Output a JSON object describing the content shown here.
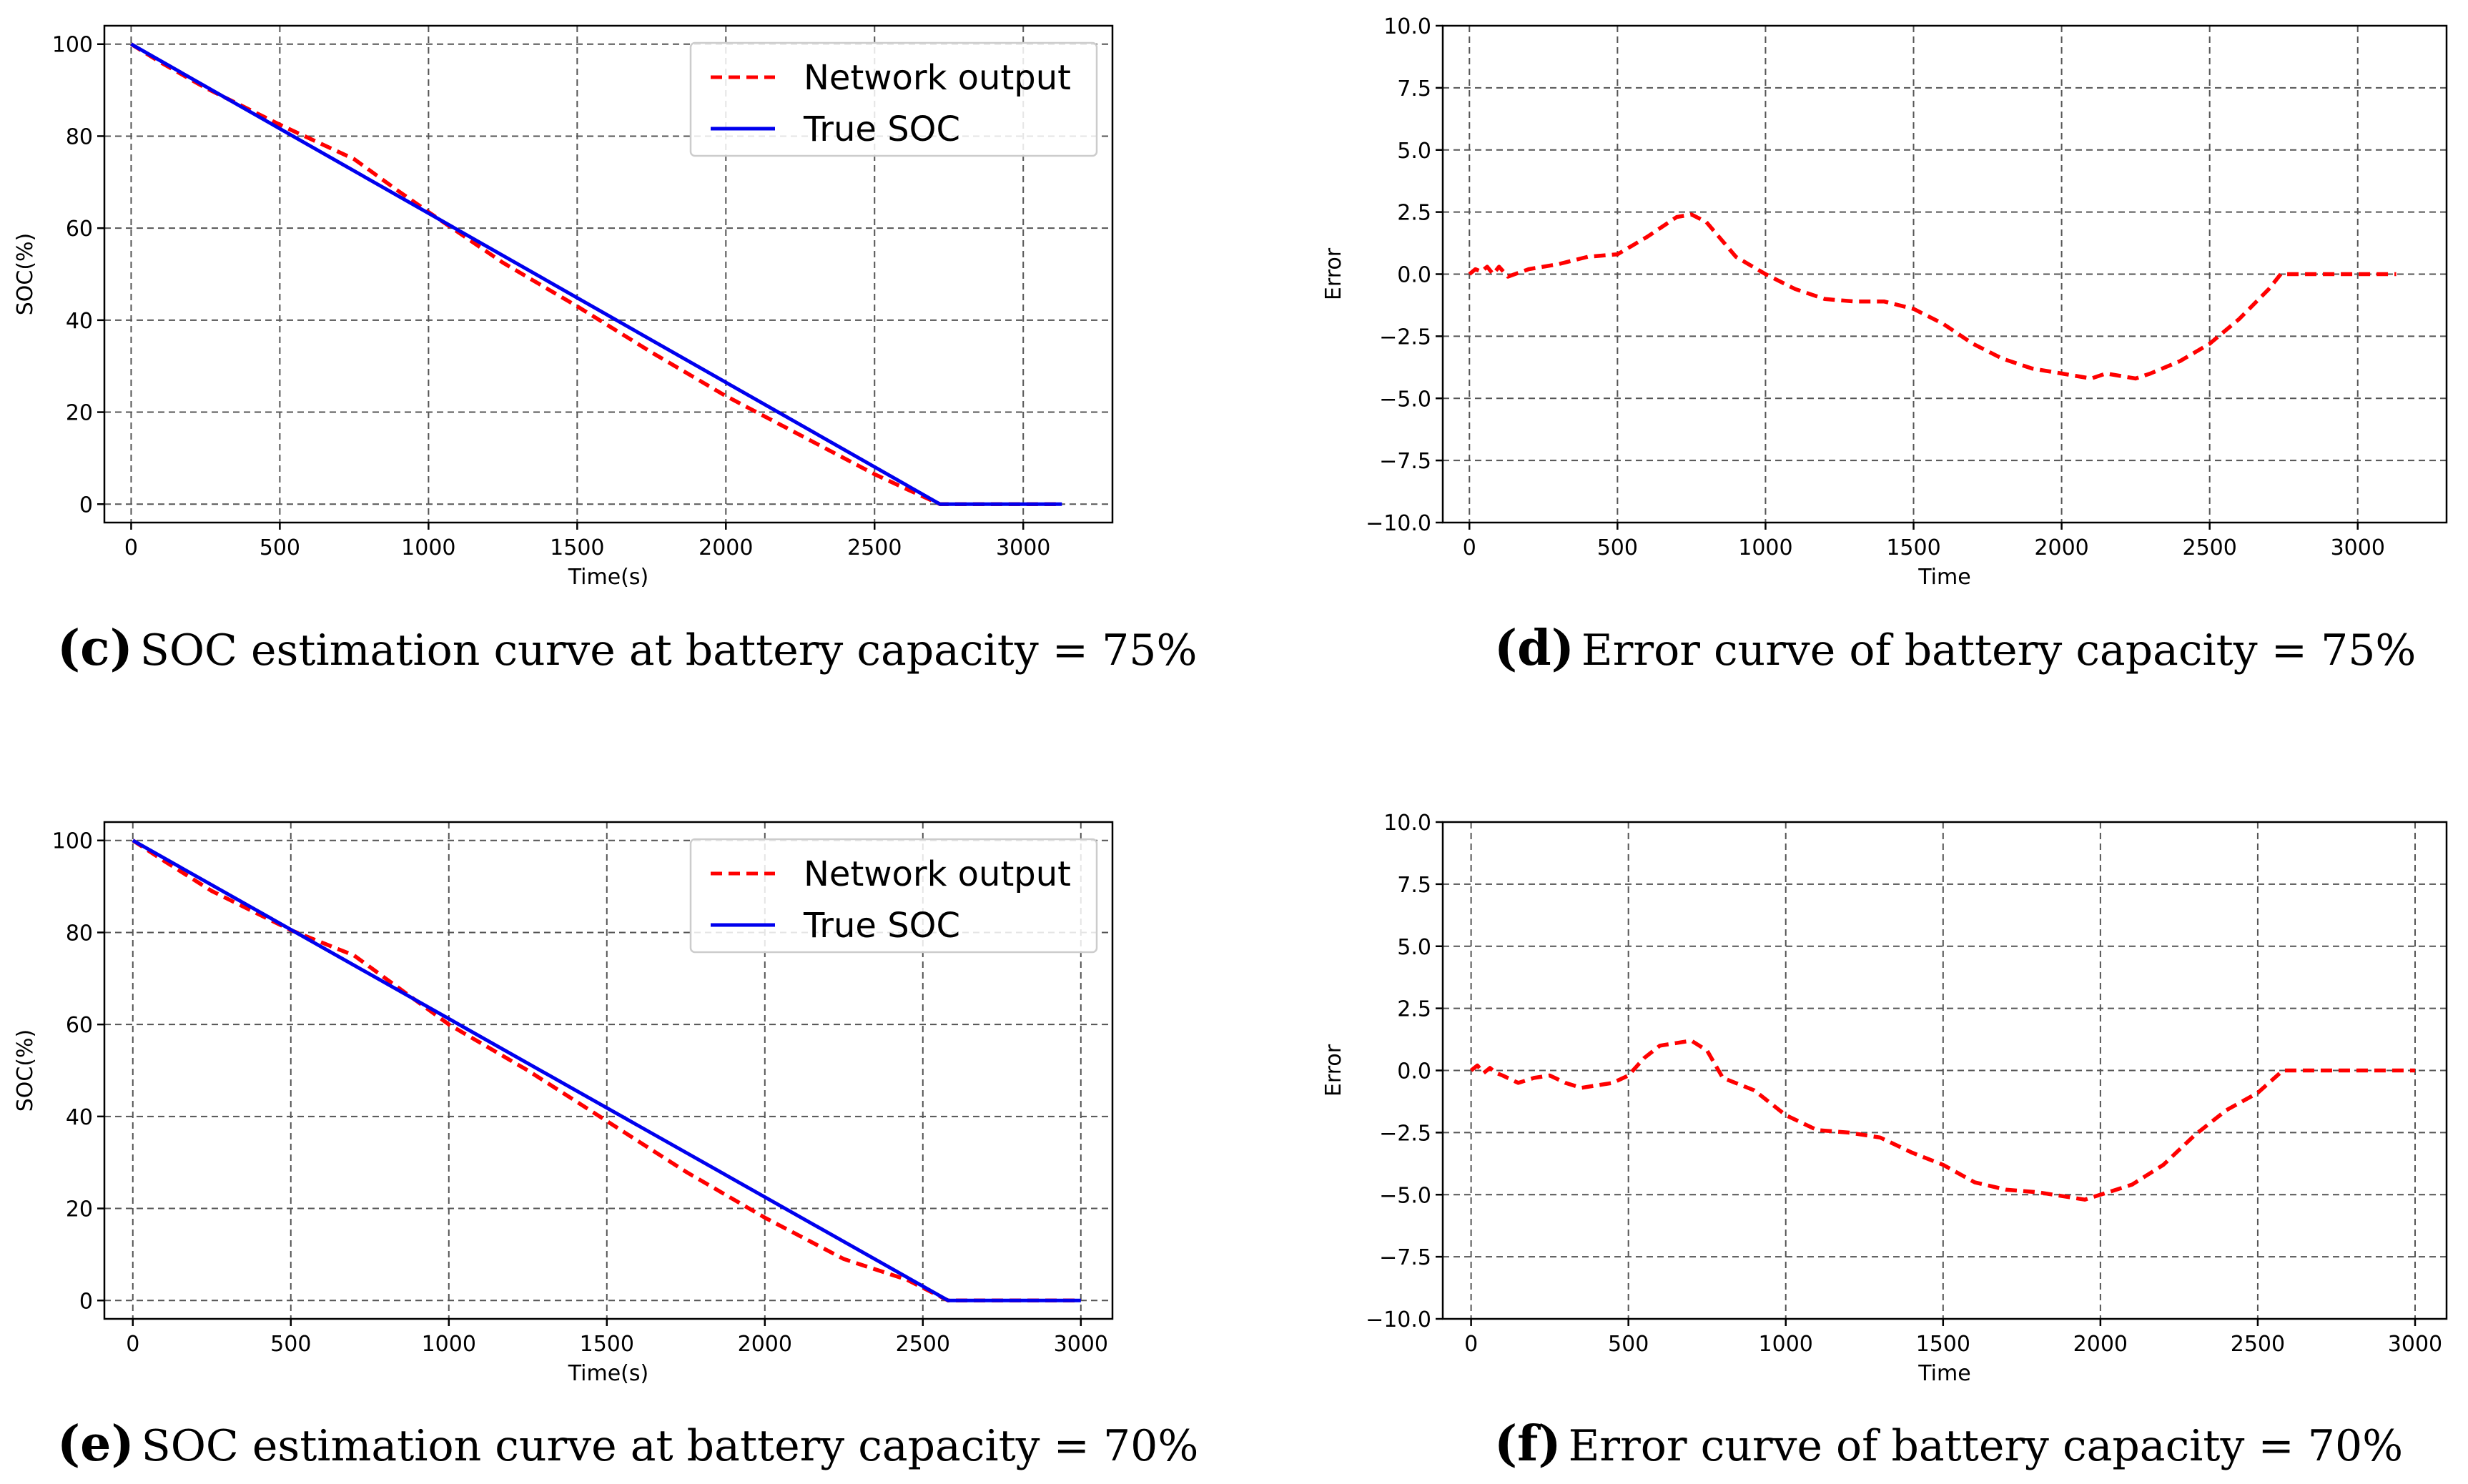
{
  "colors": {
    "network_output": "#ff0000",
    "true_soc": "#0000ee"
  },
  "chart_data": [
    {
      "id": "c",
      "type": "line",
      "letter": "(c)",
      "caption": "SOC estimation curve at battery capacity = 75%",
      "xlabel": "Time(s)",
      "ylabel": "SOC(%)",
      "xlim": [
        -90,
        3300
      ],
      "ylim": [
        -4,
        104
      ],
      "xticks": [
        0,
        500,
        1000,
        1500,
        2000,
        2500,
        3000
      ],
      "yticks": [
        0,
        20,
        40,
        60,
        80,
        100
      ],
      "xtick_labels": [
        "0",
        "500",
        "1000",
        "1500",
        "2000",
        "2500",
        "3000"
      ],
      "ytick_labels": [
        "0",
        "20",
        "40",
        "60",
        "80",
        "100"
      ],
      "legend": {
        "position": "top-right",
        "entries": [
          "Network output",
          "True SOC"
        ]
      },
      "series": [
        {
          "name": "Network output",
          "style": "dashed",
          "color": "#ff0000",
          "x": [
            0,
            100,
            250,
            500,
            750,
            900,
            1000,
            1250,
            1500,
            1750,
            2000,
            2250,
            2500,
            2600,
            2720,
            3000,
            3130
          ],
          "y": [
            100,
            96,
            90.5,
            82.5,
            75,
            68,
            63.5,
            52.5,
            43,
            33,
            23.5,
            15,
            6.5,
            3.5,
            0,
            0,
            0
          ]
        },
        {
          "name": "True SOC",
          "style": "solid",
          "color": "#0000ee",
          "x": [
            0,
            2720,
            3130
          ],
          "y": [
            100,
            0,
            0
          ]
        }
      ]
    },
    {
      "id": "d",
      "type": "line",
      "letter": "(d)",
      "caption": "Error curve of battery capacity = 75%",
      "xlabel": "Time",
      "ylabel": "Error",
      "xlim": [
        -90,
        3300
      ],
      "ylim": [
        -10,
        10
      ],
      "xticks": [
        0,
        500,
        1000,
        1500,
        2000,
        2500,
        3000
      ],
      "yticks": [
        -10,
        -7.5,
        -5,
        -2.5,
        0,
        2.5,
        5,
        7.5,
        10
      ],
      "xtick_labels": [
        "0",
        "500",
        "1000",
        "1500",
        "2000",
        "2500",
        "3000"
      ],
      "ytick_labels": [
        "−10.0",
        "−7.5",
        "−5.0",
        "−2.5",
        "0.0",
        "2.5",
        "5.0",
        "7.5",
        "10.0"
      ],
      "series": [
        {
          "name": "Error",
          "style": "dashed",
          "color": "#ff0000",
          "x": [
            0,
            20,
            40,
            60,
            80,
            100,
            130,
            200,
            300,
            400,
            500,
            600,
            700,
            750,
            800,
            900,
            1000,
            1100,
            1200,
            1300,
            1400,
            1500,
            1600,
            1700,
            1800,
            1900,
            2000,
            2050,
            2100,
            2150,
            2200,
            2250,
            2300,
            2400,
            2500,
            2600,
            2700,
            2740,
            3000,
            3130
          ],
          "y": [
            0,
            0.2,
            0.1,
            0.3,
            0,
            0.3,
            -0.1,
            0.2,
            0.4,
            0.7,
            0.8,
            1.5,
            2.3,
            2.4,
            2.1,
            0.7,
            0,
            -0.6,
            -1.0,
            -1.1,
            -1.1,
            -1.4,
            -2.0,
            -2.8,
            -3.4,
            -3.8,
            -4.0,
            -4.1,
            -4.2,
            -4.0,
            -4.1,
            -4.2,
            -4.0,
            -3.5,
            -2.8,
            -1.8,
            -0.6,
            0,
            0,
            0
          ]
        }
      ]
    },
    {
      "id": "e",
      "type": "line",
      "letter": "(e)",
      "caption": "SOC estimation curve at battery capacity = 70%",
      "xlabel": "Time(s)",
      "ylabel": "SOC(%)",
      "xlim": [
        -90,
        3100
      ],
      "ylim": [
        -4,
        104
      ],
      "xticks": [
        0,
        500,
        1000,
        1500,
        2000,
        2500,
        3000
      ],
      "yticks": [
        0,
        20,
        40,
        60,
        80,
        100
      ],
      "xtick_labels": [
        "0",
        "500",
        "1000",
        "1500",
        "2000",
        "2500",
        "3000"
      ],
      "ytick_labels": [
        "0",
        "20",
        "40",
        "60",
        "80",
        "100"
      ],
      "legend": {
        "position": "top-right",
        "entries": [
          "Network output",
          "True SOC"
        ]
      },
      "series": [
        {
          "name": "Network output",
          "style": "dashed",
          "color": "#ff0000",
          "x": [
            0,
            100,
            250,
            500,
            700,
            800,
            1000,
            1250,
            1500,
            1750,
            2000,
            2250,
            2450,
            2580,
            3000
          ],
          "y": [
            100,
            95.5,
            89,
            80.5,
            75,
            70,
            60,
            50,
            39,
            28,
            18,
            9,
            4.5,
            0,
            0
          ]
        },
        {
          "name": "True SOC",
          "style": "solid",
          "color": "#0000ee",
          "x": [
            0,
            2580,
            3000
          ],
          "y": [
            100,
            0,
            0
          ]
        }
      ]
    },
    {
      "id": "f",
      "type": "line",
      "letter": "(f)",
      "caption": "Error curve of battery capacity = 70%",
      "xlabel": "Time",
      "ylabel": "Error",
      "xlim": [
        -90,
        3100
      ],
      "ylim": [
        -10,
        10
      ],
      "xticks": [
        0,
        500,
        1000,
        1500,
        2000,
        2500,
        3000
      ],
      "yticks": [
        -10,
        -7.5,
        -5,
        -2.5,
        0,
        2.5,
        5,
        7.5,
        10
      ],
      "xtick_labels": [
        "0",
        "500",
        "1000",
        "1500",
        "2000",
        "2500",
        "3000"
      ],
      "ytick_labels": [
        "−10.0",
        "−7.5",
        "−5.0",
        "−2.5",
        "0.0",
        "2.5",
        "5.0",
        "7.5",
        "10.0"
      ],
      "series": [
        {
          "name": "Error",
          "style": "dashed",
          "color": "#ff0000",
          "x": [
            0,
            20,
            40,
            60,
            80,
            100,
            150,
            200,
            250,
            300,
            350,
            400,
            450,
            500,
            550,
            600,
            650,
            700,
            750,
            800,
            900,
            1000,
            1100,
            1200,
            1300,
            1400,
            1500,
            1600,
            1700,
            1800,
            1900,
            1950,
            2000,
            2100,
            2200,
            2300,
            2400,
            2500,
            2580,
            3000
          ],
          "y": [
            0,
            0.2,
            -0.1,
            0.1,
            -0.1,
            -0.2,
            -0.5,
            -0.3,
            -0.2,
            -0.5,
            -0.7,
            -0.6,
            -0.5,
            -0.2,
            0.5,
            1.0,
            1.1,
            1.2,
            0.8,
            -0.3,
            -0.8,
            -1.8,
            -2.4,
            -2.5,
            -2.7,
            -3.3,
            -3.8,
            -4.5,
            -4.8,
            -4.9,
            -5.1,
            -5.2,
            -5.0,
            -4.6,
            -3.8,
            -2.6,
            -1.6,
            -0.9,
            0,
            0
          ]
        }
      ]
    }
  ]
}
